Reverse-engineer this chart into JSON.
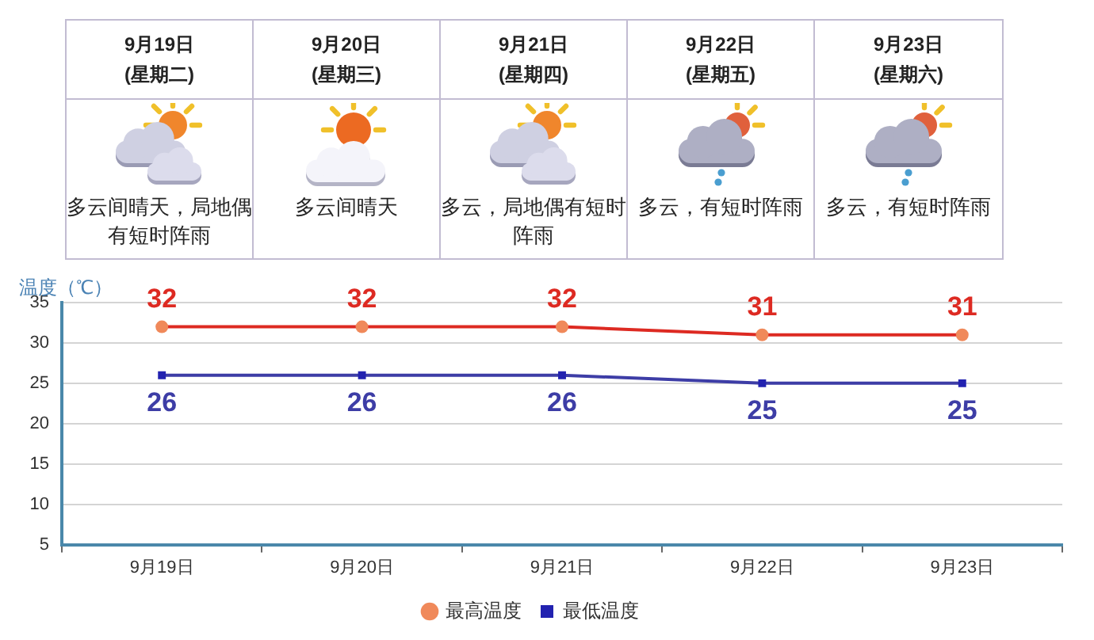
{
  "chart_data": [
    {
      "type": "other",
      "categories": [
        "9月19日",
        "9月20日",
        "9月21日",
        "9月22日",
        "9月23日"
      ],
      "annotations": [
        "(星期二)",
        "(星期三)",
        "(星期四)",
        "(星期五)",
        "(星期六)",
        "多云间晴天，局地偶有短时阵雨",
        "多云间晴天",
        "多云，局地偶有短时阵雨",
        "多云，有短时阵雨",
        "多云，有短时阵雨"
      ]
    },
    {
      "type": "line",
      "ylabel": "温度（℃）",
      "categories": [
        "9月19日",
        "9月20日",
        "9月21日",
        "9月22日",
        "9月23日"
      ],
      "series": [
        {
          "name": "最高温度",
          "color": "#dd2a22",
          "colors": [
            "#f0895a",
            "#f0895a",
            "#f0895a",
            "#f0895a",
            "#f0895a"
          ],
          "marker": "circle",
          "values": [
            32,
            32,
            32,
            31,
            31
          ]
        },
        {
          "name": "最低温度",
          "color": "#3d3da6",
          "colors": [
            "#2222b0",
            "#2222b0",
            "#2222b0",
            "#2222b0",
            "#2222b0"
          ],
          "marker": "square",
          "values": [
            26,
            26,
            26,
            25,
            25
          ]
        }
      ],
      "ylim": [
        5,
        35
      ],
      "yticks": [
        5,
        10,
        15,
        20,
        25,
        30,
        35
      ],
      "grid": "y",
      "legend": "bottom",
      "data_labels": true
    }
  ]
}
